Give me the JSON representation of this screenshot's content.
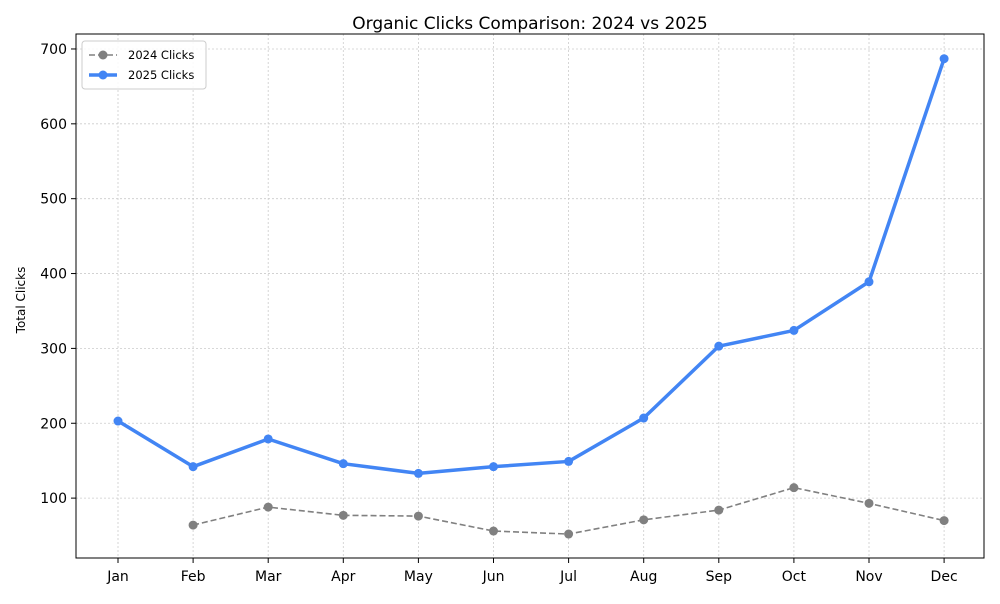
{
  "chart_data": {
    "type": "line",
    "title": "Organic Clicks Comparison: 2024 vs 2025",
    "xlabel": "",
    "ylabel": "Total Clicks",
    "categories": [
      "Jan",
      "Feb",
      "Mar",
      "Apr",
      "May",
      "Jun",
      "Jul",
      "Aug",
      "Sep",
      "Oct",
      "Nov",
      "Dec"
    ],
    "ylim": [
      20,
      720
    ],
    "yticks": [
      100,
      200,
      300,
      400,
      500,
      600,
      700
    ],
    "grid": true,
    "legend_position": "top-left",
    "series": [
      {
        "name": "2024 Clicks",
        "color": "#808080",
        "line_style": "dashed",
        "values": [
          null,
          64,
          88,
          77,
          76,
          56,
          52,
          71,
          84,
          114,
          93,
          70
        ]
      },
      {
        "name": "2025 Clicks",
        "color": "#4285F4",
        "line_style": "solid",
        "values": [
          203,
          142,
          179,
          146,
          133,
          142,
          149,
          207,
          303,
          324,
          389,
          687
        ]
      }
    ]
  }
}
